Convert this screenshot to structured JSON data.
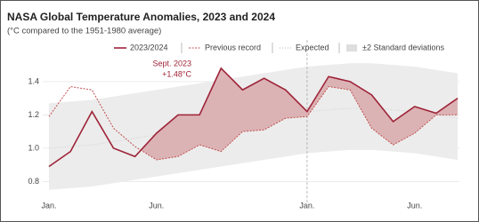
{
  "chart_data": {
    "type": "line",
    "title": "NASA Global Temperature Anomalies, 2023 and 2024",
    "subtitle": "(°C compared to the 1951-1980 average)",
    "annotation": [
      "Sept. 2023",
      "+1.48°C"
    ],
    "categories": [
      "Jan.",
      null,
      null,
      null,
      null,
      "Jun.",
      null,
      null,
      null,
      null,
      null,
      null,
      "Jan.",
      null,
      null,
      null,
      null,
      "Jun.",
      null,
      null
    ],
    "ylim": [
      0.69,
      1.65
    ],
    "yticks": [
      0.8,
      {
        "value": 1,
        "label": "1.0"
      },
      1.2,
      1.4
    ],
    "grid": true,
    "series": [
      {
        "name": "2023/2024",
        "color": "#9e2338",
        "fill_color": "#d9a9ac",
        "values": [
          0.89,
          0.98,
          1.22,
          1.0,
          0.95,
          1.09,
          1.2,
          1.2,
          1.48,
          1.35,
          1.42,
          1.35,
          1.22,
          1.43,
          1.4,
          1.32,
          1.16,
          1.25,
          1.21,
          1.3
        ]
      },
      {
        "name": "Previous record",
        "color": "#c0504d",
        "dashed": true,
        "values": [
          1.19,
          1.37,
          1.35,
          1.12,
          1.01,
          0.93,
          0.95,
          1.02,
          0.98,
          1.1,
          1.11,
          1.18,
          1.19,
          1.37,
          1.35,
          1.12,
          1.02,
          1.09,
          1.2,
          1.2
        ]
      },
      {
        "name": "Expected",
        "color": "#cfcfcf",
        "dotted": true,
        "values": [
          1.0,
          1.01,
          1.02,
          1.04,
          1.06,
          1.08,
          1.1,
          1.12,
          1.14,
          1.16,
          1.18,
          1.2,
          1.22,
          1.23,
          1.24,
          1.24,
          1.23,
          1.22,
          1.2,
          1.18
        ]
      },
      {
        "name": "±2 Standard deviations",
        "color": "#ececec",
        "low": [
          0.75,
          0.76,
          0.77,
          0.79,
          0.81,
          0.83,
          0.85,
          0.87,
          0.89,
          0.91,
          0.93,
          0.95,
          0.97,
          0.98,
          0.99,
          0.99,
          0.98,
          0.97,
          0.95,
          0.93
        ],
        "high": [
          1.27,
          1.28,
          1.29,
          1.31,
          1.33,
          1.35,
          1.37,
          1.39,
          1.41,
          1.43,
          1.45,
          1.47,
          1.49,
          1.5,
          1.51,
          1.51,
          1.5,
          1.49,
          1.47,
          1.45
        ]
      }
    ]
  }
}
